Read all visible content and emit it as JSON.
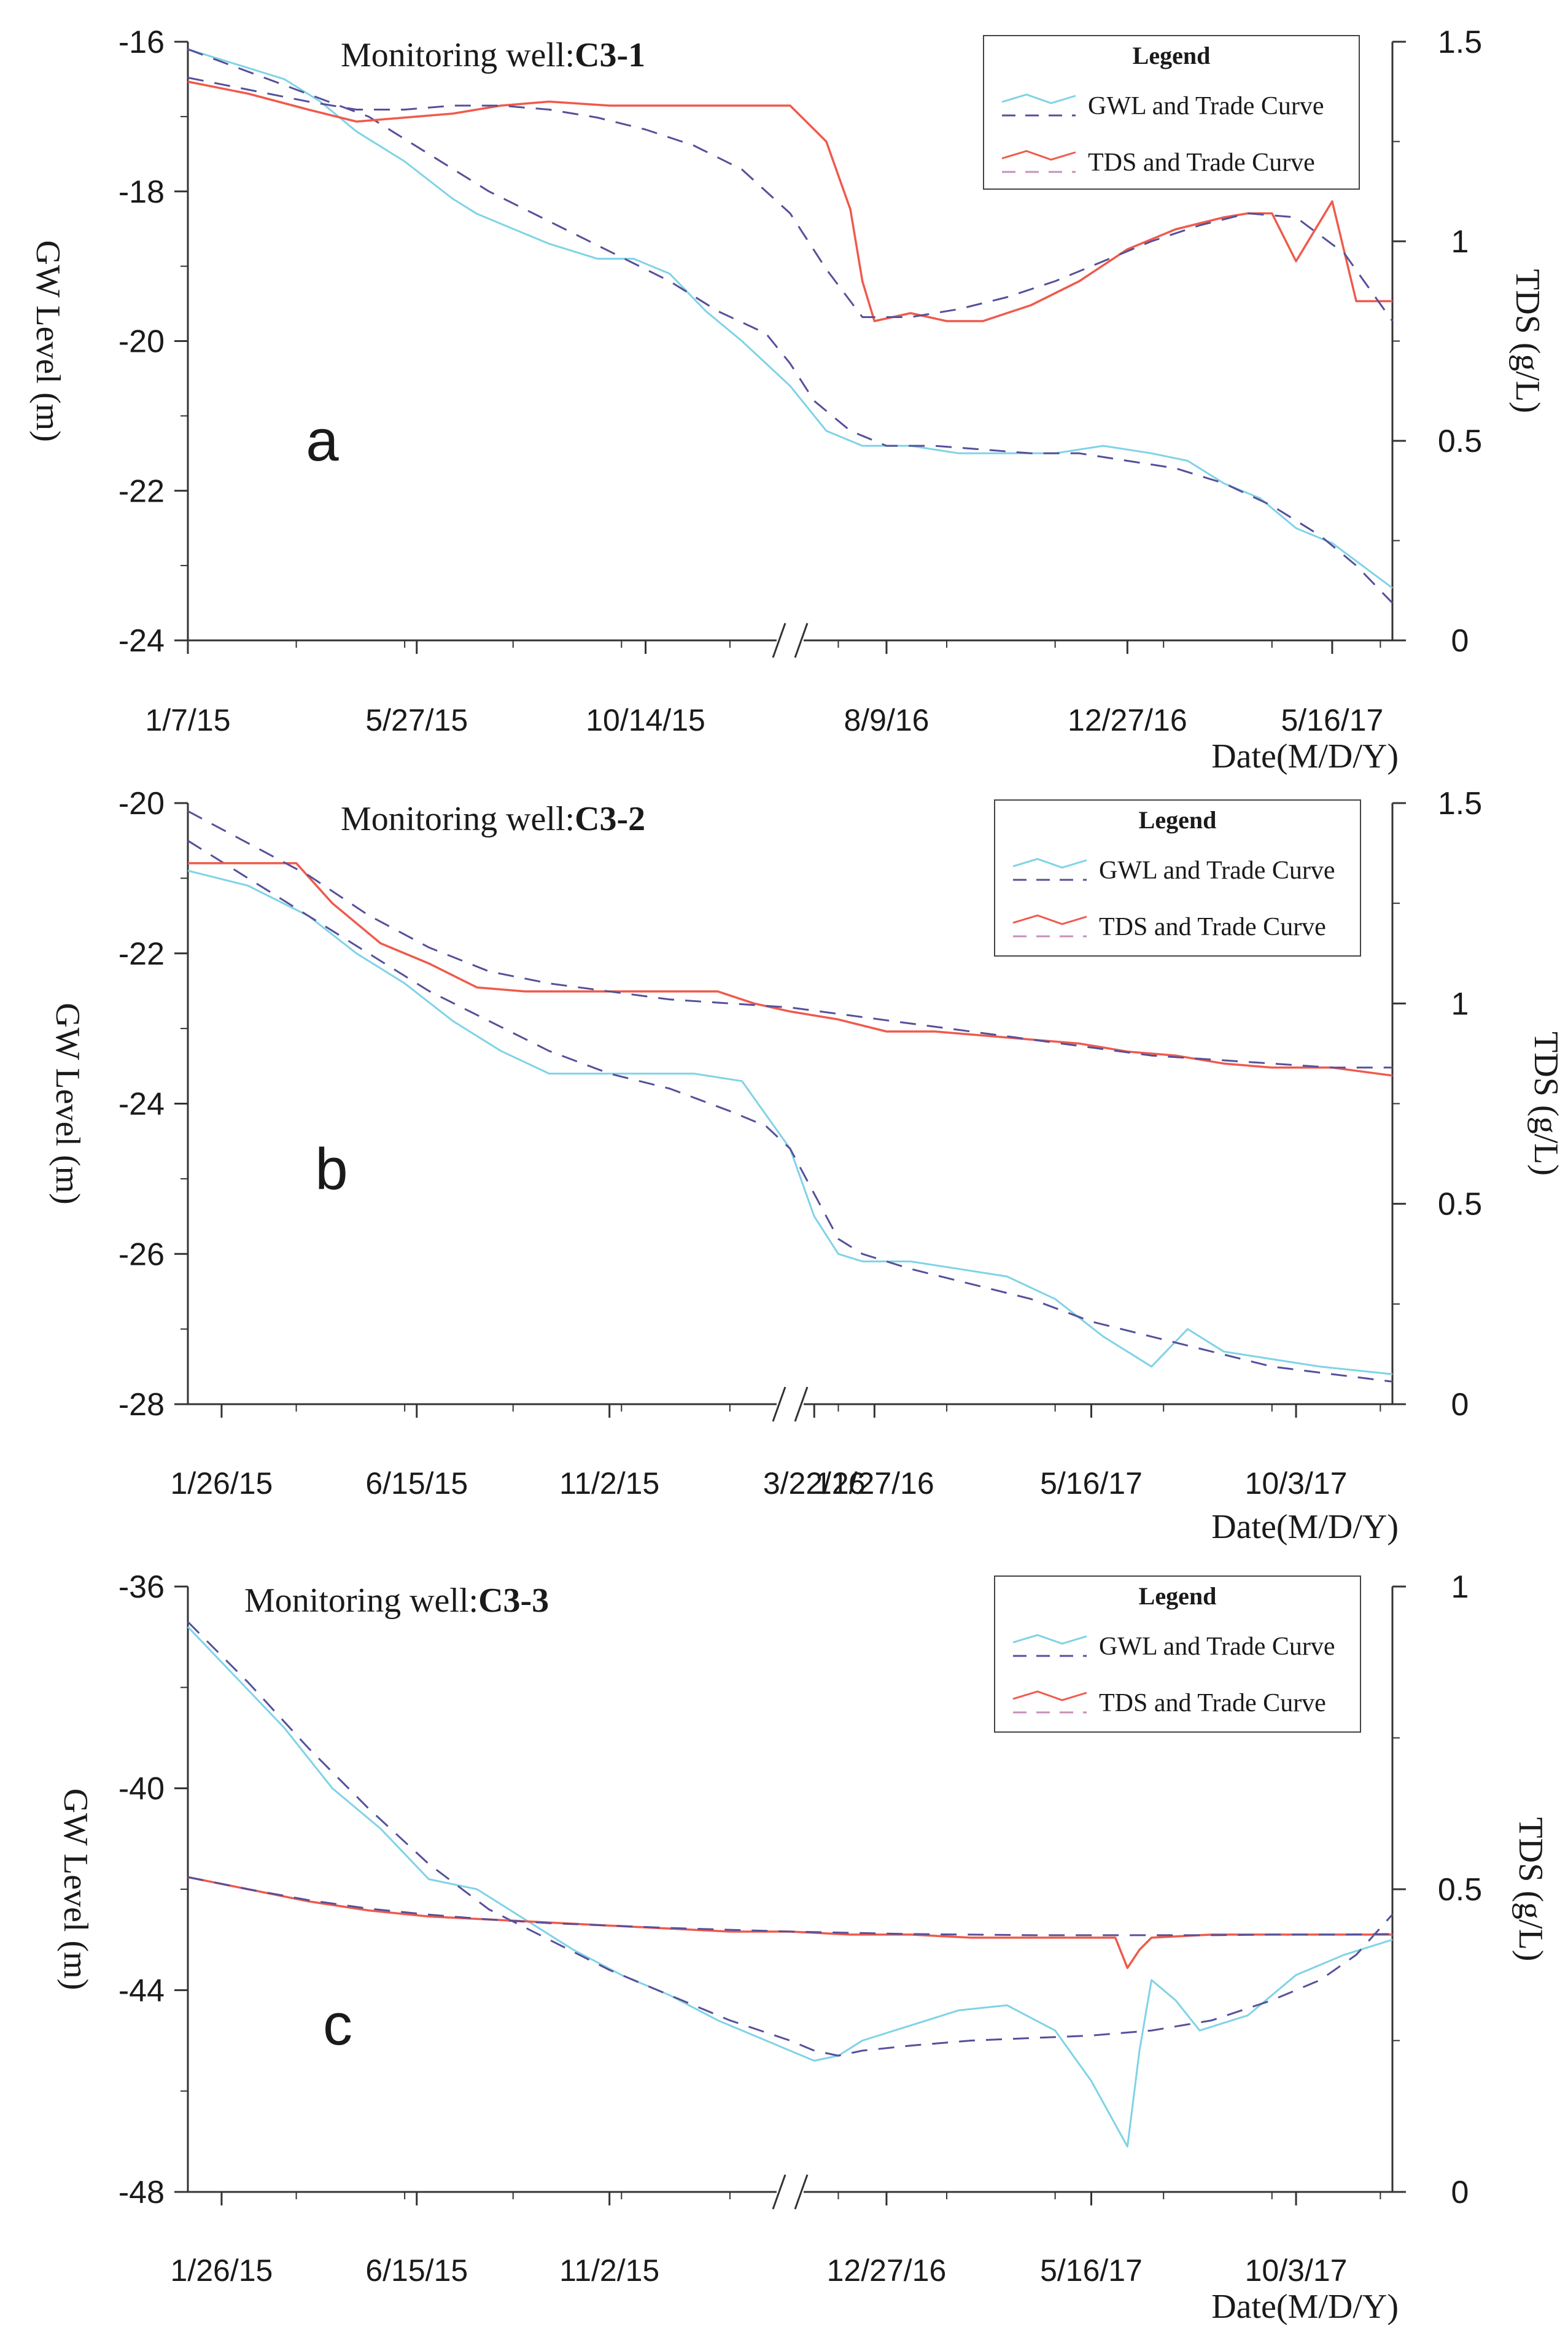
{
  "chart_data": [
    {
      "type": "line",
      "panel_label": "a",
      "title_prefix": "Monitoring well:",
      "title_well": "C3-1",
      "ylabel_left": "GW Level (m)",
      "ylabel_right": "TDS (g/L)",
      "xlabel": "Date(M/D/Y)",
      "ylim_left": [
        -24,
        -16
      ],
      "ylim_right": [
        0,
        1.5
      ],
      "yticks_left": [
        "-16",
        "-18",
        "-20",
        "-22",
        "-24"
      ],
      "yticks_right": [
        "1.5",
        "1",
        "0.5",
        "0"
      ],
      "xticks": [
        "1/7/15",
        "5/27/15",
        "10/14/15",
        "8/9/16",
        "12/27/16",
        "5/16/17"
      ],
      "axis_break_at": 0.5,
      "legend": {
        "title": "Legend",
        "entries": [
          "GWL and Trade Curve",
          "TDS and Trade Curve"
        ]
      },
      "colors": {
        "gwl": "#7fd3e6",
        "tds": "#ef5a4c",
        "trend": "#55509a"
      },
      "series": [
        {
          "name": "GWL",
          "axis": "left",
          "style": "solid-cyan",
          "x": [
            0,
            0.04,
            0.08,
            0.11,
            0.14,
            0.18,
            0.22,
            0.24,
            0.27,
            0.3,
            0.34,
            0.37,
            0.4,
            0.43,
            0.46,
            0.5,
            0.53,
            0.56,
            0.6,
            0.64,
            0.68,
            0.72,
            0.76,
            0.8,
            0.83,
            0.86,
            0.89,
            0.92,
            0.95,
            1.0
          ],
          "y": [
            -16.1,
            -16.3,
            -16.5,
            -16.8,
            -17.2,
            -17.6,
            -18.1,
            -18.3,
            -18.5,
            -18.7,
            -18.9,
            -18.9,
            -19.1,
            -19.6,
            -20.0,
            -20.6,
            -21.2,
            -21.4,
            -21.4,
            -21.5,
            -21.5,
            -21.5,
            -21.4,
            -21.5,
            -21.6,
            -21.9,
            -22.1,
            -22.5,
            -22.7,
            -23.3
          ]
        },
        {
          "name": "GWL trend",
          "axis": "left",
          "style": "dashed",
          "x": [
            0,
            0.05,
            0.1,
            0.15,
            0.2,
            0.25,
            0.3,
            0.35,
            0.4,
            0.44,
            0.48,
            0.5,
            0.52,
            0.55,
            0.58,
            0.62,
            0.66,
            0.7,
            0.74,
            0.78,
            0.82,
            0.86,
            0.9,
            0.94,
            0.97,
            1.0
          ],
          "y": [
            -16.1,
            -16.4,
            -16.7,
            -17.0,
            -17.5,
            -18.0,
            -18.4,
            -18.8,
            -19.2,
            -19.6,
            -19.9,
            -20.3,
            -20.8,
            -21.2,
            -21.4,
            -21.4,
            -21.45,
            -21.5,
            -21.5,
            -21.6,
            -21.7,
            -21.9,
            -22.2,
            -22.6,
            -23.0,
            -23.5
          ]
        },
        {
          "name": "TDS",
          "axis": "right",
          "style": "solid-red",
          "x": [
            0,
            0.05,
            0.1,
            0.14,
            0.18,
            0.22,
            0.26,
            0.3,
            0.35,
            0.4,
            0.45,
            0.5,
            0.53,
            0.55,
            0.56,
            0.57,
            0.6,
            0.63,
            0.66,
            0.7,
            0.74,
            0.78,
            0.82,
            0.86,
            0.88,
            0.9,
            0.92,
            0.95,
            0.97,
            1.0
          ],
          "y": [
            1.4,
            1.37,
            1.33,
            1.3,
            1.31,
            1.32,
            1.34,
            1.35,
            1.34,
            1.34,
            1.34,
            1.34,
            1.25,
            1.08,
            0.9,
            0.8,
            0.82,
            0.8,
            0.8,
            0.84,
            0.9,
            0.98,
            1.03,
            1.06,
            1.07,
            1.07,
            0.95,
            1.1,
            0.85,
            0.85
          ]
        },
        {
          "name": "TDS trend",
          "axis": "right",
          "style": "dashed",
          "x": [
            0,
            0.05,
            0.1,
            0.14,
            0.18,
            0.22,
            0.26,
            0.3,
            0.34,
            0.38,
            0.42,
            0.46,
            0.5,
            0.53,
            0.56,
            0.6,
            0.64,
            0.68,
            0.72,
            0.76,
            0.8,
            0.84,
            0.88,
            0.92,
            0.96,
            1.0
          ],
          "y": [
            1.41,
            1.38,
            1.35,
            1.33,
            1.33,
            1.34,
            1.34,
            1.33,
            1.31,
            1.28,
            1.24,
            1.18,
            1.07,
            0.93,
            0.81,
            0.81,
            0.83,
            0.86,
            0.9,
            0.95,
            1.0,
            1.04,
            1.07,
            1.06,
            0.97,
            0.8
          ]
        }
      ]
    },
    {
      "type": "line",
      "panel_label": "b",
      "title_prefix": "Monitoring well:",
      "title_well": "C3-2",
      "ylabel_left": "GW Level (m)",
      "ylabel_right": "TDS (g/L)",
      "xlabel": "Date(M/D/Y)",
      "ylim_left": [
        -28,
        -20
      ],
      "ylim_right": [
        0,
        1.5
      ],
      "yticks_left": [
        "-20",
        "-22",
        "-24",
        "-26",
        "-28"
      ],
      "yticks_right": [
        "1.5",
        "1",
        "0.5",
        "0"
      ],
      "xticks": [
        "1/26/15",
        "6/15/15",
        "11/2/15",
        "3/22/16",
        "12/27/16",
        "5/16/17",
        "10/3/17"
      ],
      "axis_break_at": 0.5,
      "legend": {
        "title": "Legend",
        "entries": [
          "GWL and Trade Curve",
          "TDS and Trade Curve"
        ]
      },
      "colors": {
        "gwl": "#7fd3e6",
        "tds": "#ef5a4c",
        "trend": "#55509a"
      },
      "series": [
        {
          "name": "GWL",
          "axis": "left",
          "style": "solid-cyan",
          "x": [
            0,
            0.05,
            0.1,
            0.14,
            0.18,
            0.22,
            0.26,
            0.3,
            0.34,
            0.38,
            0.42,
            0.46,
            0.5,
            0.52,
            0.54,
            0.56,
            0.6,
            0.64,
            0.68,
            0.72,
            0.76,
            0.8,
            0.83,
            0.86,
            0.9,
            0.94,
            1.0
          ],
          "y": [
            -20.9,
            -21.1,
            -21.5,
            -22.0,
            -22.4,
            -22.9,
            -23.3,
            -23.6,
            -23.6,
            -23.6,
            -23.6,
            -23.7,
            -24.6,
            -25.5,
            -26.0,
            -26.1,
            -26.1,
            -26.2,
            -26.3,
            -26.6,
            -27.1,
            -27.5,
            -27.0,
            -27.3,
            -27.4,
            -27.5,
            -27.6
          ]
        },
        {
          "name": "GWL trend",
          "axis": "left",
          "style": "dashed",
          "x": [
            0,
            0.05,
            0.1,
            0.15,
            0.2,
            0.25,
            0.3,
            0.35,
            0.4,
            0.45,
            0.48,
            0.5,
            0.52,
            0.54,
            0.56,
            0.6,
            0.65,
            0.7,
            0.75,
            0.8,
            0.85,
            0.9,
            0.95,
            1.0
          ],
          "y": [
            -20.5,
            -21.0,
            -21.5,
            -22.0,
            -22.5,
            -22.9,
            -23.3,
            -23.6,
            -23.8,
            -24.1,
            -24.3,
            -24.6,
            -25.2,
            -25.8,
            -26.0,
            -26.2,
            -26.4,
            -26.6,
            -26.9,
            -27.1,
            -27.3,
            -27.5,
            -27.6,
            -27.7
          ]
        },
        {
          "name": "TDS",
          "axis": "right",
          "style": "solid-red",
          "x": [
            0,
            0.05,
            0.09,
            0.12,
            0.16,
            0.2,
            0.24,
            0.28,
            0.32,
            0.36,
            0.4,
            0.44,
            0.47,
            0.5,
            0.54,
            0.58,
            0.62,
            0.66,
            0.7,
            0.74,
            0.78,
            0.82,
            0.86,
            0.9,
            0.95,
            1.0
          ],
          "y": [
            1.35,
            1.35,
            1.35,
            1.25,
            1.15,
            1.1,
            1.04,
            1.03,
            1.03,
            1.03,
            1.03,
            1.03,
            1.0,
            0.98,
            0.96,
            0.93,
            0.93,
            0.92,
            0.91,
            0.9,
            0.88,
            0.87,
            0.85,
            0.84,
            0.84,
            0.82
          ]
        },
        {
          "name": "TDS trend",
          "axis": "right",
          "style": "dashed",
          "x": [
            0,
            0.05,
            0.1,
            0.15,
            0.2,
            0.25,
            0.3,
            0.35,
            0.4,
            0.45,
            0.5,
            0.55,
            0.6,
            0.65,
            0.7,
            0.75,
            0.8,
            0.85,
            0.9,
            0.95,
            1.0
          ],
          "y": [
            1.48,
            1.4,
            1.32,
            1.22,
            1.14,
            1.08,
            1.05,
            1.03,
            1.01,
            1.0,
            0.99,
            0.97,
            0.95,
            0.93,
            0.91,
            0.89,
            0.87,
            0.86,
            0.85,
            0.84,
            0.84
          ]
        }
      ]
    },
    {
      "type": "line",
      "panel_label": "c",
      "title_prefix": "Monitoring well:",
      "title_well": "C3-3",
      "ylabel_left": "GW Level (m)",
      "ylabel_right": "TDS (g/L)",
      "xlabel": "Date(M/D/Y)",
      "ylim_left": [
        -48,
        -36
      ],
      "ylim_right": [
        0,
        1
      ],
      "yticks_left": [
        "-36",
        "-40",
        "-44",
        "-48"
      ],
      "yticks_right": [
        "1",
        "0.5",
        "0"
      ],
      "xticks": [
        "1/26/15",
        "6/15/15",
        "11/2/15",
        "12/27/16",
        "5/16/17",
        "10/3/17"
      ],
      "axis_break_at": 0.5,
      "legend": {
        "title": "Legend",
        "entries": [
          "GWL and Trade Curve",
          "TDS and Trade Curve"
        ]
      },
      "colors": {
        "gwl": "#7fd3e6",
        "tds": "#ef5a4c",
        "trend": "#55509a"
      },
      "series": [
        {
          "name": "GWL",
          "axis": "left",
          "style": "solid-cyan",
          "x": [
            0,
            0.04,
            0.08,
            0.12,
            0.16,
            0.2,
            0.24,
            0.28,
            0.32,
            0.36,
            0.4,
            0.44,
            0.48,
            0.52,
            0.54,
            0.56,
            0.6,
            0.64,
            0.68,
            0.72,
            0.75,
            0.78,
            0.79,
            0.8,
            0.82,
            0.84,
            0.88,
            0.92,
            0.96,
            1.0
          ],
          "y": [
            -36.8,
            -37.8,
            -38.8,
            -40.0,
            -40.8,
            -41.8,
            -42.0,
            -42.6,
            -43.2,
            -43.7,
            -44.1,
            -44.6,
            -45.0,
            -45.4,
            -45.3,
            -45.0,
            -44.7,
            -44.4,
            -44.3,
            -44.8,
            -45.8,
            -47.1,
            -45.2,
            -43.8,
            -44.2,
            -44.8,
            -44.5,
            -43.7,
            -43.3,
            -43.0
          ]
        },
        {
          "name": "GWL trend",
          "axis": "left",
          "style": "dashed",
          "x": [
            0,
            0.05,
            0.1,
            0.15,
            0.2,
            0.25,
            0.3,
            0.35,
            0.4,
            0.45,
            0.5,
            0.52,
            0.54,
            0.56,
            0.6,
            0.65,
            0.7,
            0.75,
            0.8,
            0.85,
            0.9,
            0.94,
            0.97,
            1.0
          ],
          "y": [
            -36.7,
            -37.9,
            -39.2,
            -40.4,
            -41.5,
            -42.4,
            -43.0,
            -43.6,
            -44.1,
            -44.6,
            -45.0,
            -45.2,
            -45.3,
            -45.2,
            -45.1,
            -45.0,
            -44.95,
            -44.9,
            -44.8,
            -44.6,
            -44.2,
            -43.8,
            -43.3,
            -42.5
          ]
        },
        {
          "name": "TDS",
          "axis": "right",
          "style": "solid-red",
          "x": [
            0,
            0.05,
            0.1,
            0.15,
            0.2,
            0.25,
            0.3,
            0.35,
            0.4,
            0.45,
            0.5,
            0.55,
            0.6,
            0.65,
            0.7,
            0.75,
            0.77,
            0.78,
            0.79,
            0.8,
            0.85,
            0.9,
            0.95,
            1.0
          ],
          "y": [
            0.52,
            0.5,
            0.48,
            0.465,
            0.455,
            0.45,
            0.445,
            0.44,
            0.435,
            0.43,
            0.43,
            0.425,
            0.425,
            0.42,
            0.42,
            0.42,
            0.42,
            0.37,
            0.4,
            0.42,
            0.425,
            0.425,
            0.425,
            0.425
          ]
        },
        {
          "name": "TDS trend",
          "axis": "right",
          "style": "dashed",
          "x": [
            0,
            0.05,
            0.1,
            0.15,
            0.2,
            0.25,
            0.3,
            0.35,
            0.4,
            0.45,
            0.5,
            0.55,
            0.6,
            0.65,
            0.7,
            0.75,
            0.8,
            0.85,
            0.9,
            0.95,
            1.0
          ],
          "y": [
            0.52,
            0.5,
            0.482,
            0.468,
            0.458,
            0.45,
            0.444,
            0.44,
            0.436,
            0.433,
            0.43,
            0.428,
            0.426,
            0.425,
            0.424,
            0.424,
            0.424,
            0.424,
            0.425,
            0.425,
            0.426
          ]
        }
      ]
    }
  ]
}
